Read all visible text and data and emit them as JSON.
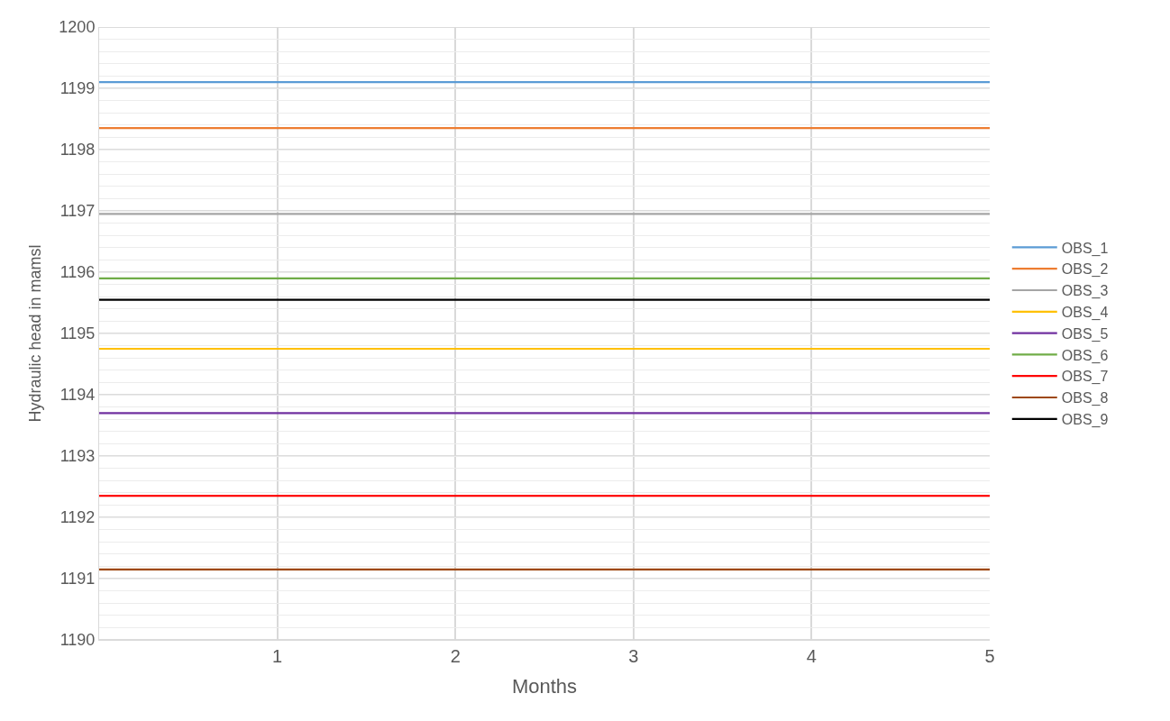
{
  "chart_data": {
    "type": "line",
    "xlabel": "Months",
    "ylabel": "Hydraulic head in mamsl",
    "x": [
      0,
      5
    ],
    "xlim": [
      0,
      5
    ],
    "xticks": [
      1,
      2,
      3,
      4,
      5
    ],
    "ylim": [
      1190,
      1200
    ],
    "yticks": [
      1190,
      {
        "value": 1190.2,
        "label": null
      },
      {
        "value": 1190.4,
        "label": null
      },
      {
        "value": 1190.6,
        "label": null
      },
      {
        "value": 1190.8,
        "label": null
      },
      1191,
      {
        "value": 1191.2,
        "label": null
      },
      {
        "value": 1191.4,
        "label": null
      },
      {
        "value": 1191.6,
        "label": null
      },
      {
        "value": 1191.8,
        "label": null
      },
      1192,
      {
        "value": 1192.2,
        "label": null
      },
      {
        "value": 1192.4,
        "label": null
      },
      {
        "value": 1192.6,
        "label": null
      },
      {
        "value": 1192.8,
        "label": null
      },
      1193,
      {
        "value": 1193.2,
        "label": null
      },
      {
        "value": 1193.4,
        "label": null
      },
      {
        "value": 1193.6,
        "label": null
      },
      {
        "value": 1193.8,
        "label": null
      },
      1194,
      {
        "value": 1194.2,
        "label": null
      },
      {
        "value": 1194.4,
        "label": null
      },
      {
        "value": 1194.6,
        "label": null
      },
      {
        "value": 1194.8,
        "label": null
      },
      1195,
      {
        "value": 1195.2,
        "label": null
      },
      {
        "value": 1195.4,
        "label": null
      },
      {
        "value": 1195.6,
        "label": null
      },
      {
        "value": 1195.8,
        "label": null
      },
      1196,
      {
        "value": 1196.2,
        "label": null
      },
      {
        "value": 1196.4,
        "label": null
      },
      {
        "value": 1196.6,
        "label": null
      },
      {
        "value": 1196.8,
        "label": null
      },
      1197,
      {
        "value": 1197.2,
        "label": null
      },
      {
        "value": 1197.4,
        "label": null
      },
      {
        "value": 1197.6,
        "label": null
      },
      {
        "value": 1197.8,
        "label": null
      },
      1198,
      {
        "value": 1198.2,
        "label": null
      },
      {
        "value": 1198.4,
        "label": null
      },
      {
        "value": 1198.6,
        "label": null
      },
      {
        "value": 1198.8,
        "label": null
      },
      1199,
      {
        "value": 1199.2,
        "label": null
      },
      {
        "value": 1199.4,
        "label": null
      },
      {
        "value": 1199.6,
        "label": null
      },
      {
        "value": 1199.8,
        "label": null
      },
      1200
    ],
    "grid": true,
    "legend": "right",
    "marker": "none",
    "line_style": "solid",
    "series": [
      {
        "name": "OBS_1",
        "color": "#5b9bd5",
        "values": [
          1199.1,
          1199.1
        ]
      },
      {
        "name": "OBS_2",
        "color": "#ed7d31",
        "values": [
          1198.35,
          1198.35
        ]
      },
      {
        "name": "OBS_3",
        "color": "#a5a5a5",
        "values": [
          1196.95,
          1196.95
        ]
      },
      {
        "name": "OBS_4",
        "color": "#ffc000",
        "values": [
          1194.75,
          1194.75
        ]
      },
      {
        "name": "OBS_5",
        "color": "#7030a0",
        "values": [
          1193.7,
          1193.7
        ]
      },
      {
        "name": "OBS_6",
        "color": "#70ad47",
        "values": [
          1195.9,
          1195.9
        ]
      },
      {
        "name": "OBS_7",
        "color": "#ff0000",
        "values": [
          1192.35,
          1192.35
        ]
      },
      {
        "name": "OBS_8",
        "color": "#9e480e",
        "values": [
          1191.15,
          1191.15
        ]
      },
      {
        "name": "OBS_9",
        "color": "#000000",
        "values": [
          1195.55,
          1195.55
        ]
      }
    ]
  }
}
